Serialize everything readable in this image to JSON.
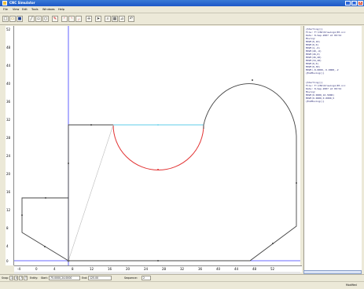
{
  "window": {
    "title": "CNC Simulator"
  },
  "menu": [
    "File",
    "View",
    "Edit",
    "Tools",
    "Windows",
    "Help"
  ],
  "toolbar": {
    "buttons": [
      "new-icon",
      "open-icon",
      "save-icon",
      "line-icon",
      "rect-icon",
      "circle-icon",
      "pen-icon",
      "arc-icon",
      "arc2-icon",
      "arc3-icon",
      "move-icon",
      "cursor-icon",
      "zoom-icon",
      "grid-icon",
      "measure-icon",
      "undo-icon"
    ]
  },
  "ruler": {
    "x_ticks": [
      "-4",
      "0",
      "4",
      "8",
      "12",
      "16",
      "20",
      "24",
      "28",
      "32",
      "36",
      "40",
      "44",
      "48",
      "52"
    ],
    "y_ticks": [
      "52",
      "48",
      "44",
      "40",
      "36",
      "32",
      "28",
      "24",
      "20",
      "16",
      "12",
      "8",
      "4",
      "0"
    ]
  },
  "code": {
    "lines": [
      "{Starting()}",
      "File: F:\\CNC\\Drawings\\EX.ncc",
      "Date: 8-Sep-2007  at  09:54",
      "Moving:",
      "  MOVE(0,10)",
      "  MOVE(0,0)",
      "  MOVE(4,-6)",
      "  MOVE(40,-6)",
      "  MOVE(46,0)",
      "  MOVE(46,40)",
      "  MOVE(34,40)",
      "  MOVE(0,0)",
      "  MOVE(0,30)",
      "  MOVE(-8.0000,-5.0000,-2",
      "{EndMoving()}",
      "",
      "{Starting()}",
      "File: F:\\CNC\\Drawings\\EX.ncc",
      "Date: 8-Sep-2007  at  09:54",
      "Moving:",
      "  MOVE(0.0000,16.5000)",
      "  MOVE(0.0000,0.0000,5",
      "{EndMoving()}"
    ]
  },
  "status": {
    "snap_label": "Snap:",
    "snap_values": [
      "1",
      "0",
      "7",
      "T"
    ],
    "entity_label": "Entity:",
    "start_label": "Start:",
    "start_value": "75.0000,24.0000",
    "end_label": "End:",
    "end_value": "125.00",
    "sequence_label": "Sequence:",
    "sequence_value": "2"
  },
  "bottom": {
    "mode": "Modified"
  }
}
